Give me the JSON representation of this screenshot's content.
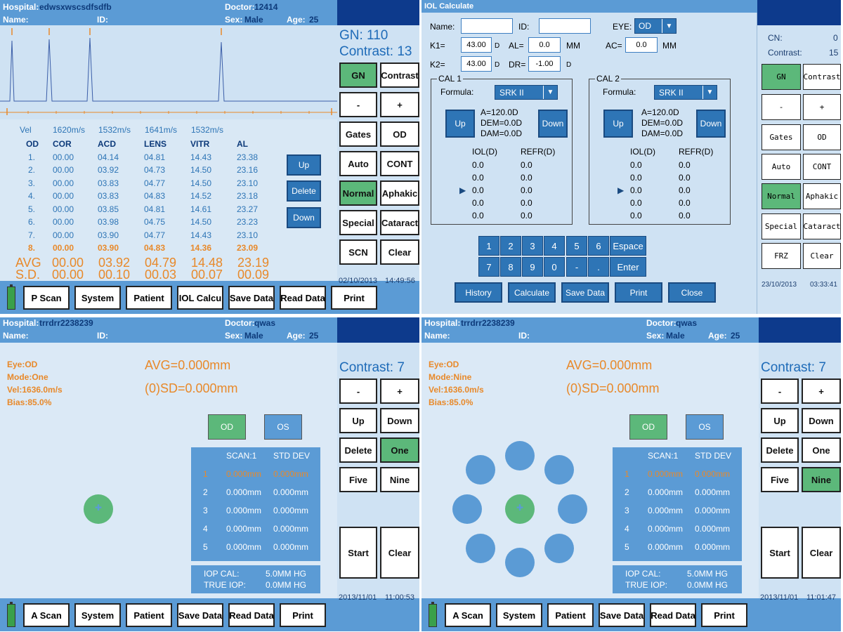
{
  "p1": {
    "hdr": {
      "hospital_label": "Hospital:",
      "hospital": "edwsxwscsdfsdfb",
      "doctor_label": "Doctor:",
      "doctor": "12414",
      "name_label": "Name:",
      "id_label": "ID:",
      "sex_label": "Sex:",
      "sex": "Male",
      "age_label": "Age:",
      "age": "25"
    },
    "gn": "GN:    110",
    "contrast": "Contrast:   13",
    "vel_label": "Vel",
    "vels": [
      "1620m/s",
      "1532m/s",
      "1641m/s",
      "1532m/s"
    ],
    "cols": [
      "OD",
      "COR",
      "ACD",
      "LENS",
      "VITR",
      "AL"
    ],
    "rows": [
      [
        "1.",
        "00.00",
        "04.14",
        "04.81",
        "14.43",
        "23.38"
      ],
      [
        "2.",
        "00.00",
        "03.92",
        "04.73",
        "14.50",
        "23.16"
      ],
      [
        "3.",
        "00.00",
        "03.83",
        "04.77",
        "14.50",
        "23.10"
      ],
      [
        "4.",
        "00.00",
        "03.83",
        "04.83",
        "14.52",
        "23.18"
      ],
      [
        "5.",
        "00.00",
        "03.85",
        "04.81",
        "14.61",
        "23.27"
      ],
      [
        "6.",
        "00.00",
        "03.98",
        "04.75",
        "14.50",
        "23.23"
      ],
      [
        "7.",
        "00.00",
        "03.90",
        "04.77",
        "14.43",
        "23.10"
      ],
      [
        "8.",
        "00.00",
        "03.90",
        "04.83",
        "14.36",
        "23.09"
      ]
    ],
    "avg": [
      "AVG",
      "00.00",
      "03.92",
      "04.79",
      "14.48",
      "23.19"
    ],
    "sd": [
      "S.D.",
      "00.00",
      "00.10",
      "00.03",
      "00.07",
      "00.09"
    ],
    "small_btns": [
      "Up",
      "Delete",
      "Down"
    ],
    "side_btns": [
      "GN",
      "Contrast",
      "-",
      "+",
      "Gates",
      "OD",
      "Auto",
      "CONT",
      "Normal",
      "Aphakic",
      "Special",
      "Cataract",
      "SCN",
      "Clear"
    ],
    "date": "02/10/2013",
    "time": "14:49:56",
    "foot": [
      "P Scan",
      "System",
      "Patient",
      "IOL Calcu",
      "Save Data",
      "Read Data",
      "Print"
    ]
  },
  "p2": {
    "title": "IOL Calculate",
    "name_label": "Name:",
    "id_label": "ID:",
    "eye_label": "EYE:",
    "eye": "OD",
    "k1_label": "K1=",
    "k1": "43.00",
    "k1_unit": "D",
    "al_label": "AL=",
    "al": "0.0",
    "al_unit": "MM",
    "ac_label": "AC=",
    "ac": "0.0",
    "ac_unit": "MM",
    "k2_label": "K2=",
    "k2": "43.00",
    "k2_unit": "D",
    "dr_label": "DR=",
    "dr": "-1.00",
    "dr_unit": "D",
    "cal1": {
      "legend": "CAL 1",
      "formula_label": "Formula:",
      "formula": "SRK II",
      "up": "Up",
      "down": "Down",
      "a": "A=120.0D",
      "dem": "DEM=0.0D",
      "dam": "DAM=0.0D",
      "iol_h": "IOL(D)",
      "refr_h": "REFR(D)",
      "rows": [
        [
          "0.0",
          "0.0"
        ],
        [
          "0.0",
          "0.0"
        ],
        [
          "0.0",
          "0.0"
        ],
        [
          "0.0",
          "0.0"
        ],
        [
          "0.0",
          "0.0"
        ]
      ]
    },
    "cal2": {
      "legend": "CAL 2",
      "formula_label": "Formula:",
      "formula": "SRK II",
      "up": "Up",
      "down": "Down",
      "a": "A=120.0D",
      "dem": "DEM=0.0D",
      "dam": "DAM=0.0D",
      "iol_h": "IOL(D)",
      "refr_h": "REFR(D)",
      "rows": [
        [
          "0.0",
          "0.0"
        ],
        [
          "0.0",
          "0.0"
        ],
        [
          "0.0",
          "0.0"
        ],
        [
          "0.0",
          "0.0"
        ],
        [
          "0.0",
          "0.0"
        ]
      ]
    },
    "keys1": [
      "1",
      "2",
      "3",
      "4",
      "5",
      "6"
    ],
    "keys2": [
      "7",
      "8",
      "9",
      "0",
      "-",
      "."
    ],
    "espace": "Espace",
    "enter": "Enter",
    "bottom": [
      "History",
      "Calculate",
      "Save Data",
      "Print",
      "Close"
    ],
    "cn": "CN:",
    "cn_val": "0",
    "contrast_label": "Contrast:",
    "contrast_val": "15",
    "side_btns": [
      "GN",
      "Contrast",
      "-",
      "+",
      "Gates",
      "OD",
      "Auto",
      "CONT",
      "Normal",
      "Aphakic",
      "Special",
      "Cataract",
      "FRZ",
      "Clear"
    ],
    "date": "23/10/2013",
    "time": "03:33:41"
  },
  "p3": {
    "hdr": {
      "hospital_label": "Hospital:",
      "hospital": "trrdrr2238239",
      "doctor_label": "Doctor:",
      "doctor": "qwas",
      "name_label": "Name:",
      "id_label": "ID:",
      "sex_label": "Sex:",
      "sex": "Male",
      "age_label": "Age:",
      "age": "25"
    },
    "eye": "Eye:OD",
    "mode": "Mode:One",
    "vel": "Vel:1636.0m/s",
    "bias": "Bias:85.0%",
    "avg": "AVG=0.000mm",
    "sd": "(0)SD=0.000mm",
    "od": "OD",
    "os": "OS",
    "scan_h": "SCAN:1",
    "std_h": "STD DEV",
    "rows": [
      [
        "1",
        "0.000mm",
        "0.000mm"
      ],
      [
        "2",
        "0.000mm",
        "0.000mm"
      ],
      [
        "3",
        "0.000mm",
        "0.000mm"
      ],
      [
        "4",
        "0.000mm",
        "0.000mm"
      ],
      [
        "5",
        "0.000mm",
        "0.000mm"
      ]
    ],
    "iop_cal_label": "IOP CAL:",
    "iop_cal": "5.0MM HG",
    "true_iop_label": "TRUE IOP:",
    "true_iop": "0.0MM HG",
    "contrast": "Contrast:   7",
    "side_btns": [
      "-",
      "+",
      "Up",
      "Down",
      "Delete",
      "One",
      "Five",
      "Nine",
      "Start",
      "Clear"
    ],
    "date": "2013/11/01",
    "time": "11:00:53",
    "foot": [
      "A Scan",
      "System",
      "Patient",
      "Save Data",
      "Read Data",
      "Print"
    ]
  },
  "p4": {
    "hdr": {
      "hospital_label": "Hospital:",
      "hospital": "trrdrr2238239",
      "doctor_label": "Doctor:",
      "doctor": "qwas",
      "name_label": "Name:",
      "id_label": "ID:",
      "sex_label": "Sex:",
      "sex": "Male",
      "age_label": "Age:",
      "age": "25"
    },
    "eye": "Eye:OD",
    "mode": "Mode:Nine",
    "vel": "Vel:1636.0m/s",
    "bias": "Bias:85.0%",
    "avg": "AVG=0.000mm",
    "sd": "(0)SD=0.000mm",
    "od": "OD",
    "os": "OS",
    "scan_h": "SCAN:1",
    "std_h": "STD DEV",
    "rows": [
      [
        "1",
        "0.000mm",
        "0.000mm"
      ],
      [
        "2",
        "0.000mm",
        "0.000mm"
      ],
      [
        "3",
        "0.000mm",
        "0.000mm"
      ],
      [
        "4",
        "0.000mm",
        "0.000mm"
      ],
      [
        "5",
        "0.000mm",
        "0.000mm"
      ]
    ],
    "iop_cal_label": "IOP CAL:",
    "iop_cal": "5.0MM HG",
    "true_iop_label": "TRUE IOP:",
    "true_iop": "0.0MM HG",
    "contrast": "Contrast:   7",
    "side_btns": [
      "-",
      "+",
      "Up",
      "Down",
      "Delete",
      "One",
      "Five",
      "Nine",
      "Start",
      "Clear"
    ],
    "date": "2013/11/01",
    "time": "11:01:47",
    "foot": [
      "A Scan",
      "System",
      "Patient",
      "Save Data",
      "Read Data",
      "Print"
    ]
  },
  "colors": {
    "header_blue": "#5b9bd5",
    "panel_bg": "#cfe2f3",
    "active_green": "#5cb87a",
    "accent_orange": "#e8892a",
    "navy": "#0d3a8c"
  }
}
